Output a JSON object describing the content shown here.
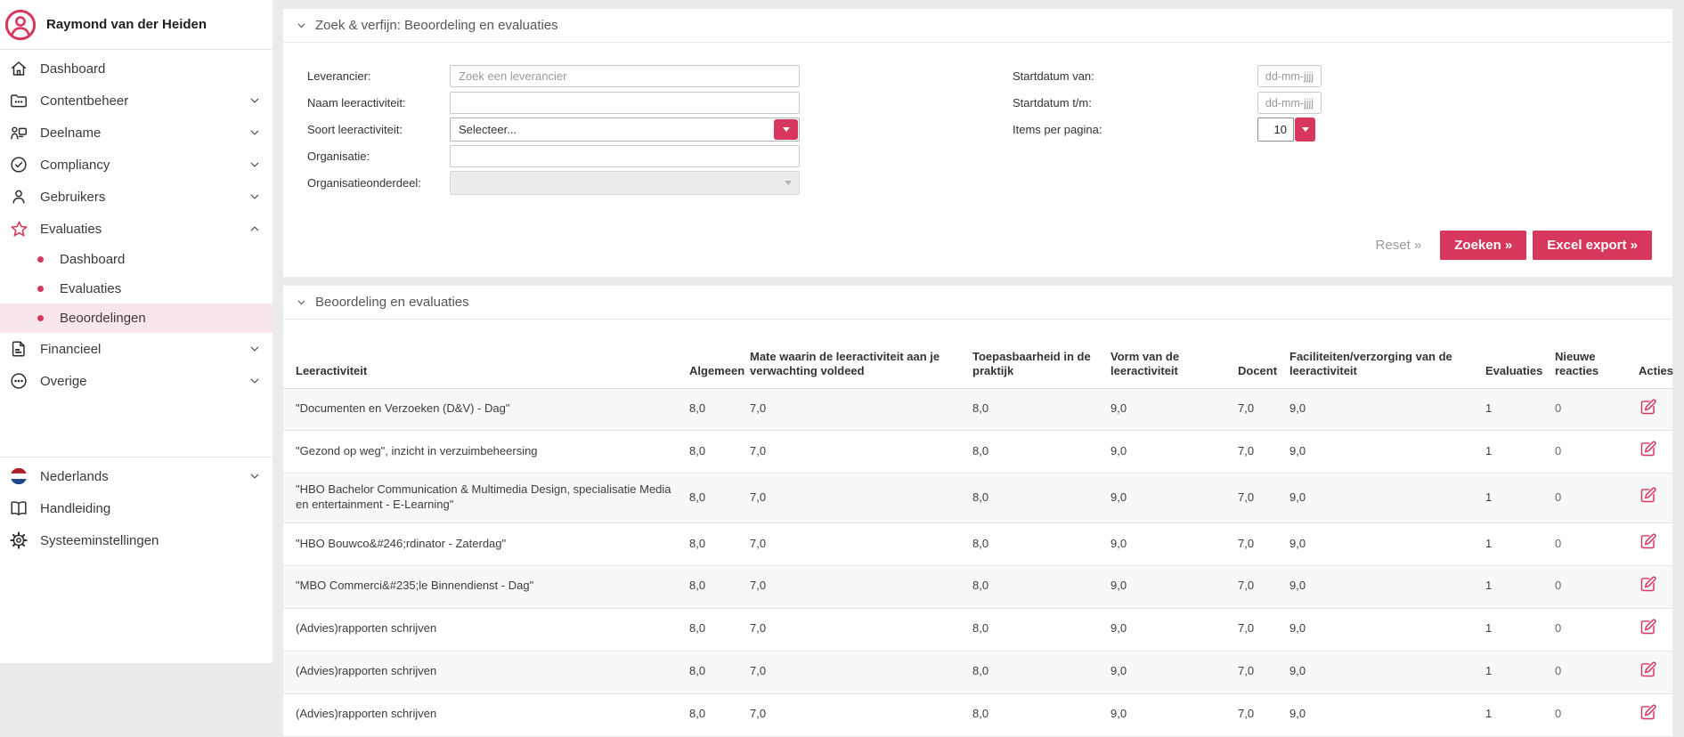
{
  "app": {
    "accent_color": "#d7365d",
    "active_item_bg": "#f9e6eb",
    "page_bg": "#ecebeb"
  },
  "sidebar": {
    "user_name": "Raymond van der Heiden",
    "items": [
      {
        "slug": "dashboard",
        "icon": "home",
        "label": "Dashboard"
      },
      {
        "slug": "contentbeheer",
        "icon": "folder",
        "label": "Contentbeheer",
        "chevron": "down"
      },
      {
        "slug": "deelname",
        "icon": "participation",
        "label": "Deelname",
        "chevron": "down"
      },
      {
        "slug": "compliancy",
        "icon": "badge-check",
        "label": "Compliancy",
        "chevron": "down"
      },
      {
        "slug": "gebruikers",
        "icon": "user",
        "label": "Gebruikers",
        "chevron": "down"
      },
      {
        "slug": "evaluaties",
        "icon": "star",
        "label": "Evaluaties",
        "chevron": "up",
        "accent": true,
        "children": [
          {
            "slug": "evaluaties-dashboard",
            "label": "Dashboard"
          },
          {
            "slug": "evaluaties-evaluaties",
            "label": "Evaluaties"
          },
          {
            "slug": "evaluaties-beoordelingen",
            "label": "Beoordelingen",
            "active": true
          }
        ]
      },
      {
        "slug": "financieel",
        "icon": "document",
        "label": "Financieel",
        "chevron": "down"
      },
      {
        "slug": "overige",
        "icon": "ellipsis-circle",
        "label": "Overige",
        "chevron": "down"
      }
    ],
    "footer_items": [
      {
        "slug": "taal",
        "icon": "flag-nl",
        "label": "Nederlands",
        "chevron": "down"
      },
      {
        "slug": "handleiding",
        "icon": "book",
        "label": "Handleiding"
      },
      {
        "slug": "systeeminstellingen",
        "icon": "gear",
        "label": "Systeeminstellingen"
      }
    ]
  },
  "search_panel": {
    "title": "Zoek & verfijn: Beoordeling en evaluaties",
    "fields": {
      "leverancier": {
        "label": "Leverancier:",
        "placeholder": "Zoek een leverancier",
        "value": ""
      },
      "naam_leeractiviteit": {
        "label": "Naam leeractiviteit:",
        "value": ""
      },
      "soort_leeractiviteit": {
        "label": "Soort leeractiviteit:",
        "value": "Selecteer..."
      },
      "organisatie": {
        "label": "Organisatie:",
        "value": ""
      },
      "organisatieonderdeel": {
        "label": "Organisatieonderdeel:",
        "value": "",
        "disabled": true
      },
      "startdatum_van": {
        "label": "Startdatum van:",
        "placeholder": "dd-mm-jjjj",
        "value": ""
      },
      "startdatum_tm": {
        "label": "Startdatum t/m:",
        "placeholder": "dd-mm-jjjj",
        "value": ""
      },
      "items_per_pagina": {
        "label": "Items per pagina:",
        "value": "10"
      }
    },
    "buttons": {
      "reset": "Reset »",
      "zoeken": "Zoeken »",
      "excel_export": "Excel export »"
    }
  },
  "results_panel": {
    "title": "Beoordeling en evaluaties",
    "columns": [
      "Leeractiviteit",
      "Algemeen",
      "Mate waarin de leeractiviteit aan je verwachting voldeed",
      "Toepasbaarheid in de praktijk",
      "Vorm van de leeractiviteit",
      "Docent",
      "Faciliteiten/verzorging van de leeractiviteit",
      "Evaluaties",
      "Nieuwe reacties",
      "Acties"
    ],
    "rows": [
      {
        "leeractiviteit": "\"Documenten en Verzoeken (D&V) - Dag\"",
        "algemeen": "8,0",
        "mate_verwachting": "7,0",
        "toepasbaarheid": "8,0",
        "vorm": "9,0",
        "docent": "7,0",
        "faciliteiten": "9,0",
        "evaluaties": "1",
        "nieuwe_reacties": "0"
      },
      {
        "leeractiviteit": "\"Gezond op weg\", inzicht in verzuimbeheersing",
        "algemeen": "8,0",
        "mate_verwachting": "7,0",
        "toepasbaarheid": "8,0",
        "vorm": "9,0",
        "docent": "7,0",
        "faciliteiten": "9,0",
        "evaluaties": "1",
        "nieuwe_reacties": "0"
      },
      {
        "leeractiviteit": "\"HBO Bachelor Communication & Multimedia Design, specialisatie Media en entertainment - E-Learning\"",
        "algemeen": "8,0",
        "mate_verwachting": "7,0",
        "toepasbaarheid": "8,0",
        "vorm": "9,0",
        "docent": "7,0",
        "faciliteiten": "9,0",
        "evaluaties": "1",
        "nieuwe_reacties": "0"
      },
      {
        "leeractiviteit": "\"HBO Bouwco&#246;rdinator - Zaterdag\"",
        "algemeen": "8,0",
        "mate_verwachting": "7,0",
        "toepasbaarheid": "8,0",
        "vorm": "9,0",
        "docent": "7,0",
        "faciliteiten": "9,0",
        "evaluaties": "1",
        "nieuwe_reacties": "0"
      },
      {
        "leeractiviteit": "\"MBO Commerci&#235;le Binnendienst - Dag\"",
        "algemeen": "8,0",
        "mate_verwachting": "7,0",
        "toepasbaarheid": "8,0",
        "vorm": "9,0",
        "docent": "7,0",
        "faciliteiten": "9,0",
        "evaluaties": "1",
        "nieuwe_reacties": "0"
      },
      {
        "leeractiviteit": "(Advies)rapporten schrijven",
        "algemeen": "8,0",
        "mate_verwachting": "7,0",
        "toepasbaarheid": "8,0",
        "vorm": "9,0",
        "docent": "7,0",
        "faciliteiten": "9,0",
        "evaluaties": "1",
        "nieuwe_reacties": "0"
      },
      {
        "leeractiviteit": "(Advies)rapporten schrijven",
        "algemeen": "8,0",
        "mate_verwachting": "7,0",
        "toepasbaarheid": "8,0",
        "vorm": "9,0",
        "docent": "7,0",
        "faciliteiten": "9,0",
        "evaluaties": "1",
        "nieuwe_reacties": "0"
      },
      {
        "leeractiviteit": "(Advies)rapporten schrijven",
        "algemeen": "8,0",
        "mate_verwachting": "7,0",
        "toepasbaarheid": "8,0",
        "vorm": "9,0",
        "docent": "7,0",
        "faciliteiten": "9,0",
        "evaluaties": "1",
        "nieuwe_reacties": "0"
      }
    ]
  }
}
